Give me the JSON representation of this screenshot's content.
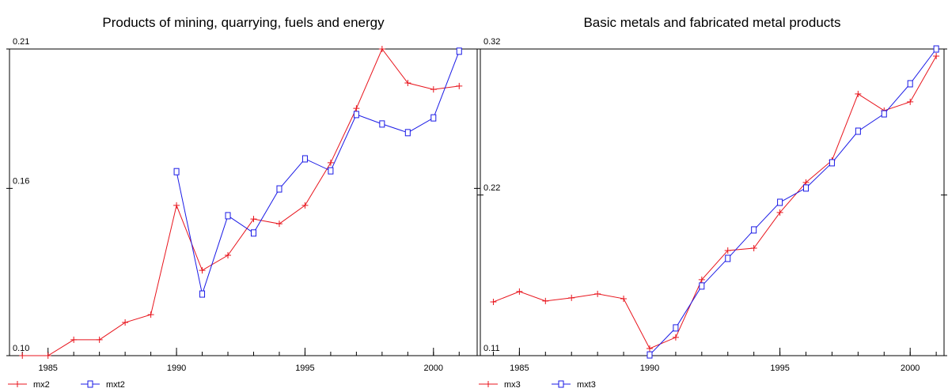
{
  "chart_data": [
    {
      "type": "line",
      "title": "Products of mining, quarrying, fuels and energy",
      "x": [
        1984,
        1985,
        1986,
        1987,
        1988,
        1989,
        1990,
        1991,
        1992,
        1993,
        1994,
        1995,
        1996,
        1997,
        1998,
        1999,
        2000,
        2001
      ],
      "xlim": [
        1983.5,
        2001.7
      ],
      "xticks": [
        1985,
        1990,
        1995,
        2000
      ],
      "ylim": [
        0.1,
        0.21
      ],
      "yticks": [
        {
          "value": 0.1,
          "label": "0.10"
        },
        0.16,
        0.21
      ],
      "series": [
        {
          "name": "mx2",
          "color": "#e8141c",
          "marker": "plus",
          "values": [
            0.1,
            0.1,
            0.1057,
            0.1057,
            0.1119,
            0.1147,
            0.1539,
            0.1306,
            0.136,
            0.149,
            0.1473,
            0.1539,
            0.1692,
            0.1887,
            0.21,
            0.1978,
            0.1955,
            0.1967
          ]
        },
        {
          "name": "mxt2",
          "color": "#1a1ae6",
          "marker": "square",
          "values": [
            null,
            null,
            null,
            null,
            null,
            null,
            0.166,
            0.1221,
            0.1502,
            0.144,
            0.1598,
            0.1706,
            0.1663,
            0.1865,
            0.1831,
            0.18,
            0.1853,
            0.2092
          ]
        }
      ]
    },
    {
      "type": "line",
      "title": "Basic metals and fabricated metal products",
      "x": [
        1984,
        1985,
        1986,
        1987,
        1988,
        1989,
        1990,
        1991,
        1992,
        1993,
        1994,
        1995,
        1996,
        1997,
        1998,
        1999,
        2000,
        2001
      ],
      "xlim": [
        1983.5,
        2001.3
      ],
      "xticks": [
        1985,
        1990,
        1995,
        2000
      ],
      "ylim": [
        0.11,
        0.32
      ],
      "yticks": [
        0.11,
        0.22,
        0.32
      ],
      "series": [
        {
          "name": "mx3",
          "color": "#e8141c",
          "marker": "plus",
          "values": [
            0.1468,
            0.1539,
            0.1474,
            0.1496,
            0.1523,
            0.149,
            0.1149,
            0.1225,
            0.162,
            0.182,
            0.1836,
            0.208,
            0.2286,
            0.2437,
            0.2892,
            0.2778,
            0.2838,
            0.3151
          ]
        },
        {
          "name": "mxt3",
          "color": "#1a1ae6",
          "marker": "square",
          "values": [
            null,
            null,
            null,
            null,
            null,
            null,
            0.1105,
            0.129,
            0.1577,
            0.1766,
            0.1961,
            0.215,
            0.2248,
            0.2421,
            0.2637,
            0.2756,
            0.2962,
            0.32
          ]
        }
      ]
    }
  ]
}
